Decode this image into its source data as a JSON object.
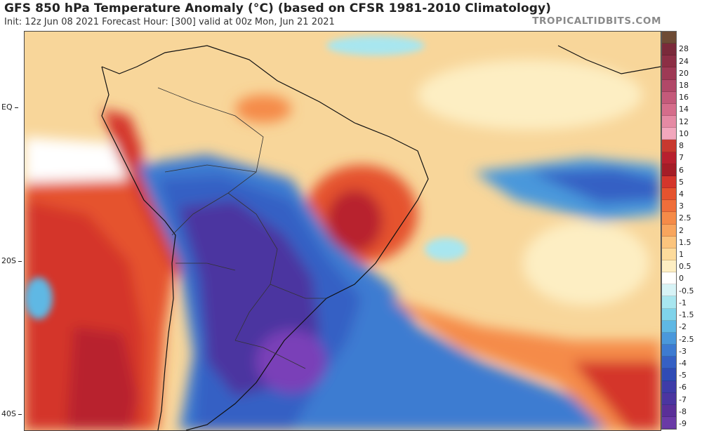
{
  "header": {
    "title": "GFS 850 hPa Temperature Anomaly (°C) (based on CFSR 1981-2010 Climatology)",
    "subtitle": "Init: 12z Jun 08 2021   Forecast Hour: [300]   valid at 00z Mon, Jun 21 2021",
    "brand": "TROPICALTIDBITS.COM"
  },
  "latitude_labels": [
    "EQ",
    "20S",
    "40S"
  ],
  "colorbar": {
    "unit": "°C",
    "levels": [
      {
        "label": "",
        "color": "#6e4b35"
      },
      {
        "label": "28",
        "color": "#7a2a3a"
      },
      {
        "label": "24",
        "color": "#8c2f45"
      },
      {
        "label": "20",
        "color": "#9e3a55"
      },
      {
        "label": "18",
        "color": "#b14868"
      },
      {
        "label": "16",
        "color": "#c45a7a"
      },
      {
        "label": "14",
        "color": "#d56d8b"
      },
      {
        "label": "12",
        "color": "#e58aa4"
      },
      {
        "label": "10",
        "color": "#f2a7bd"
      },
      {
        "label": "8",
        "color": "#c8392f"
      },
      {
        "label": "7",
        "color": "#b8202e"
      },
      {
        "label": "6",
        "color": "#a51d27"
      },
      {
        "label": "5",
        "color": "#d4362c"
      },
      {
        "label": "4",
        "color": "#e5532f"
      },
      {
        "label": "3",
        "color": "#ef6e3a"
      },
      {
        "label": "2.5",
        "color": "#f58b48"
      },
      {
        "label": "2",
        "color": "#f8a55d"
      },
      {
        "label": "1.5",
        "color": "#fbc47d"
      },
      {
        "label": "1",
        "color": "#fddb9c"
      },
      {
        "label": "0.5",
        "color": "#fdeec3"
      },
      {
        "label": "0",
        "color": "#ffffff"
      },
      {
        "label": "-0.5",
        "color": "#d7f3f6"
      },
      {
        "label": "-1",
        "color": "#a8e6ef"
      },
      {
        "label": "-1.5",
        "color": "#7fd3ea"
      },
      {
        "label": "-2",
        "color": "#5fb8e4"
      },
      {
        "label": "-2.5",
        "color": "#4a98db"
      },
      {
        "label": "-3",
        "color": "#3d7bd1"
      },
      {
        "label": "-4",
        "color": "#3560c4"
      },
      {
        "label": "-5",
        "color": "#2f4bb5"
      },
      {
        "label": "-6",
        "color": "#3e3ca8"
      },
      {
        "label": "-7",
        "color": "#4b35a0"
      },
      {
        "label": "-8",
        "color": "#5a2f98"
      },
      {
        "label": "-9",
        "color": "#6a3aa6"
      }
    ]
  }
}
